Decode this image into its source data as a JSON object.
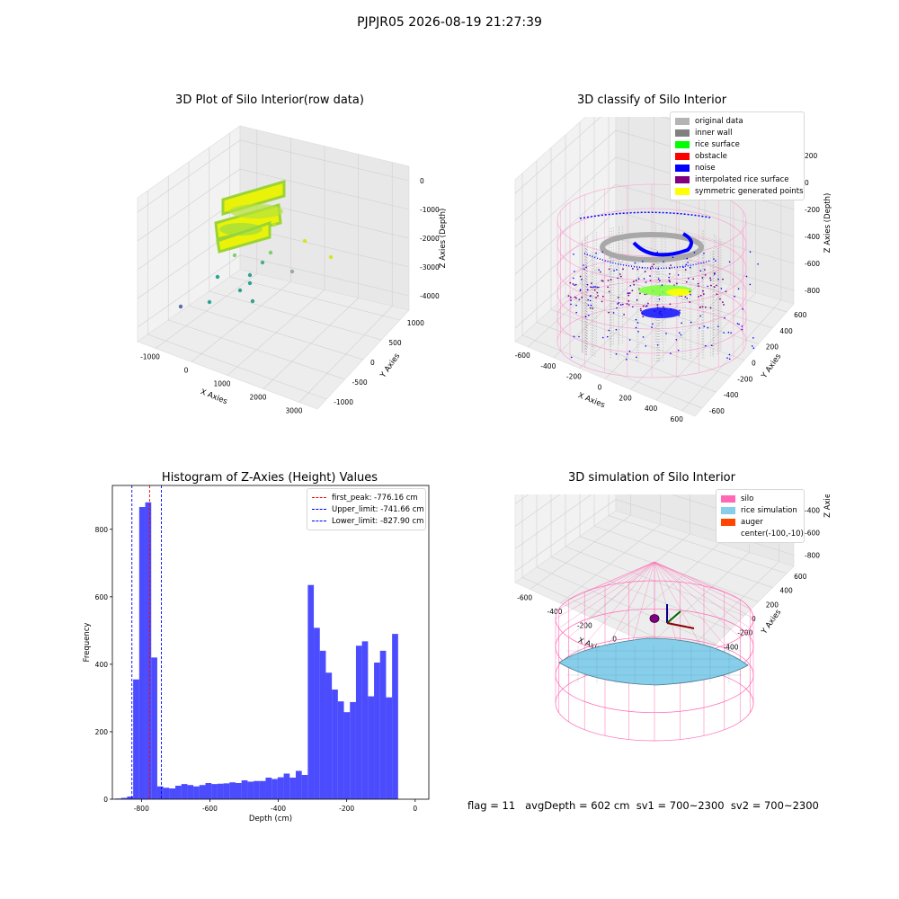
{
  "figure": {
    "title": "PJPJR05 2026-08-19 21:27:39",
    "status_line": "flag = 11   avgDepth = 602 cm  sv1 = 700~2300  sv2 = 700~2300"
  },
  "panels": {
    "raw": {
      "title": "3D Plot of Silo Interior(row data)",
      "xlabel": "X Axies",
      "ylabel": "Y Axies",
      "zlabel": "Z Axies (Depth)",
      "xticks": [
        "-1000",
        "0",
        "1000",
        "2000",
        "3000"
      ],
      "yticks": [
        "-1000",
        "-500",
        "0",
        "500",
        "1000"
      ],
      "zticks": [
        "0",
        "-1000",
        "-2000",
        "-3000",
        "-4000"
      ]
    },
    "classify": {
      "title": "3D classify of Silo Interior",
      "xlabel": "X Axies",
      "ylabel": "Y Axies",
      "zlabel": "Z Axies (Depth)",
      "xticks": [
        "-600",
        "-400",
        "-200",
        "0",
        "200",
        "400",
        "600"
      ],
      "yticks": [
        "-600",
        "-400",
        "-200",
        "0",
        "200",
        "400",
        "600"
      ],
      "zticks": [
        "200",
        "0",
        "-200",
        "-400",
        "-600",
        "-800"
      ],
      "legend": [
        {
          "label": "original data",
          "color": "#b4b4b4"
        },
        {
          "label": "inner wall",
          "color": "#808080"
        },
        {
          "label": "rice surface",
          "color": "#00ff00"
        },
        {
          "label": "obstacle",
          "color": "#ff0000"
        },
        {
          "label": "noise",
          "color": "#0000ff"
        },
        {
          "label": "interpolated rice surface",
          "color": "#800080"
        },
        {
          "label": "symmetric generated points",
          "color": "#ffff00"
        }
      ]
    },
    "simulation": {
      "title": "3D simulation of Silo Interior",
      "xlabel": "X Axies",
      "ylabel": "Y Axies",
      "zlabel": "Z Axies (Depth)",
      "xticks": [
        "-600",
        "-400",
        "-200",
        "0",
        "200",
        "400"
      ],
      "yticks": [
        "-600",
        "-400",
        "-200",
        "0",
        "200",
        "400",
        "600"
      ],
      "zticks": [
        "400",
        "200",
        "0",
        "-200",
        "-400",
        "-600",
        "-800"
      ],
      "legend": [
        {
          "label": "silo",
          "color": "#ff69b4"
        },
        {
          "label": "rice simulation",
          "color": "#87ceeb"
        },
        {
          "label": "auger",
          "color": "#ff4500"
        },
        {
          "label": "center(-100,-10)",
          "color": ""
        }
      ]
    }
  },
  "chart_data": [
    {
      "type": "bar",
      "title": "Histogram of Z-Axies (Height) Values",
      "xlabel": "Depth (cm)",
      "ylabel": "Frequency",
      "xlim": [
        -885,
        40
      ],
      "ylim": [
        0,
        930
      ],
      "xticks": [
        -800,
        -600,
        -400,
        -200,
        0
      ],
      "yticks": [
        0,
        200,
        400,
        600,
        800
      ],
      "bar_color": "#0000ff",
      "bin_start": -877,
      "bin_width": 17.6,
      "values": [
        2,
        4,
        8,
        355,
        866,
        880,
        420,
        38,
        34,
        32,
        40,
        45,
        42,
        38,
        42,
        48,
        45,
        46,
        47,
        50,
        48,
        56,
        52,
        54,
        54,
        64,
        60,
        65,
        76,
        64,
        84,
        72,
        635,
        508,
        440,
        375,
        325,
        290,
        258,
        288,
        455,
        468,
        305,
        405,
        440,
        302,
        490
      ],
      "vlines": [
        {
          "label": "first_peak: -776.16 cm",
          "x": -776.16,
          "color": "#ff0000"
        },
        {
          "label": "Upper_limit: -741.66 cm",
          "x": -741.66,
          "color": "#0000ff"
        },
        {
          "label": "Lower_limit: -827.90 cm",
          "x": -827.9,
          "color": "#0000ff"
        }
      ],
      "legend_position": "upper right"
    }
  ]
}
